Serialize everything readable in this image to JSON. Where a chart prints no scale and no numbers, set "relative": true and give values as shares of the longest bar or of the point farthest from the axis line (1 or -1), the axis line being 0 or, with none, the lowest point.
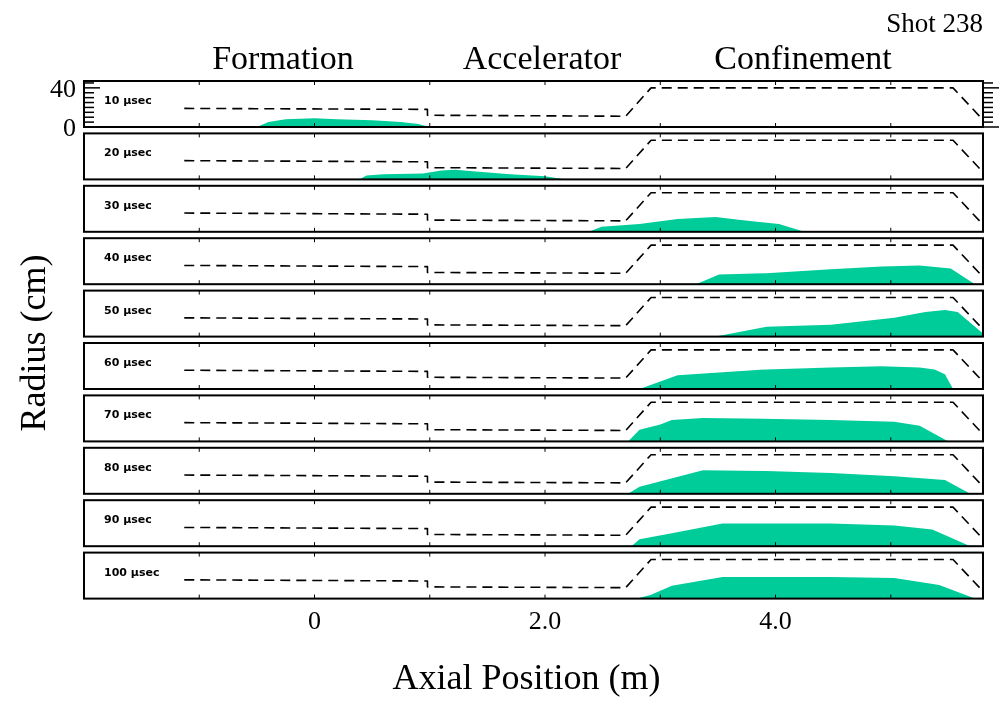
{
  "chart_data": [
    {
      "type": "area",
      "title": "Shot 238",
      "ylabel": "Radius (cm)",
      "annotations": [
        "Formation",
        "Accelerator",
        "Confinement",
        "10 µsec"
      ],
      "xlim": [
        -2,
        5.8
      ],
      "xticks": [
        {
          "value": -1,
          "label": null
        },
        {
          "value": 0,
          "label": null
        },
        {
          "value": 1,
          "label": null
        },
        {
          "value": 2,
          "label": null
        },
        {
          "value": 3,
          "label": null
        },
        {
          "value": 4,
          "label": null
        },
        {
          "value": 5,
          "label": null
        }
      ],
      "ylim": [
        0,
        47
      ],
      "yticks": [
        0,
        {
          "value": 5,
          "label": null
        },
        {
          "value": 10,
          "label": null
        },
        {
          "value": 15,
          "label": null
        },
        {
          "value": 20,
          "label": null
        },
        {
          "value": 25,
          "label": null
        },
        {
          "value": 30,
          "label": null
        },
        {
          "value": 35,
          "label": null
        },
        40,
        {
          "value": 45,
          "label": null
        }
      ],
      "tick_labels": "y",
      "series": [
        {
          "color": "#00cc99",
          "x": [
            -0.5,
            -0.4,
            -0.25,
            0,
            0.2,
            0.5,
            0.75,
            0.9,
            1.0
          ],
          "values": [
            0,
            5,
            8,
            9,
            8,
            7,
            5,
            3,
            0
          ]
        },
        {
          "type": "line",
          "color": "#000000",
          "line_style": "dashed",
          "x": [
            -1.13,
            0.98,
            0.98,
            2.7,
            2.92,
            5.54,
            5.77
          ],
          "values": [
            19,
            18,
            12,
            11,
            40,
            40,
            11
          ]
        }
      ]
    },
    {
      "type": "area",
      "relative": true,
      "annotations": [
        "20 µsec"
      ],
      "xlim": [
        -2,
        5.8
      ],
      "xticks": [
        {
          "value": -1,
          "label": null
        },
        {
          "value": 0,
          "label": null
        },
        {
          "value": 1,
          "label": null
        },
        {
          "value": 2,
          "label": null
        },
        {
          "value": 3,
          "label": null
        },
        {
          "value": 4,
          "label": null
        },
        {
          "value": 5,
          "label": null
        }
      ],
      "tick_labels": false,
      "series": [
        {
          "color": "#00cc99",
          "x": [
            0.39,
            0.45,
            0.6,
            0.94,
            1.1,
            1.22,
            1.4,
            1.7,
            2.0,
            2.18
          ],
          "values": [
            0,
            0.1,
            0.13,
            0.15,
            0.23,
            0.25,
            0.2,
            0.13,
            0.08,
            0
          ]
        },
        {
          "type": "line",
          "color": "#000000",
          "line_style": "dashed",
          "x": [
            -1.13,
            0.98,
            0.98,
            2.7,
            2.92,
            5.54,
            5.77
          ],
          "values": [
            0.48,
            0.45,
            0.3,
            0.28,
            1,
            1,
            0.28
          ]
        }
      ]
    },
    {
      "type": "area",
      "relative": true,
      "annotations": [
        "30 µsec"
      ],
      "xlim": [
        -2,
        5.8
      ],
      "xticks": [
        {
          "value": -1,
          "label": null
        },
        {
          "value": 0,
          "label": null
        },
        {
          "value": 1,
          "label": null
        },
        {
          "value": 2,
          "label": null
        },
        {
          "value": 3,
          "label": null
        },
        {
          "value": 4,
          "label": null
        },
        {
          "value": 5,
          "label": null
        }
      ],
      "tick_labels": false,
      "series": [
        {
          "color": "#00cc99",
          "x": [
            2.38,
            2.49,
            2.82,
            3.15,
            3.48,
            3.7,
            4.03,
            4.25
          ],
          "values": [
            0,
            0.13,
            0.2,
            0.33,
            0.38,
            0.3,
            0.2,
            0
          ]
        },
        {
          "type": "line",
          "color": "#000000",
          "line_style": "dashed",
          "x": [
            -1.13,
            0.98,
            0.98,
            2.7,
            2.92,
            5.54,
            5.77
          ],
          "values": [
            0.48,
            0.45,
            0.3,
            0.28,
            1,
            1,
            0.28
          ]
        }
      ]
    },
    {
      "type": "area",
      "relative": true,
      "annotations": [
        "40 µsec"
      ],
      "xlim": [
        -2,
        5.8
      ],
      "xticks": [
        {
          "value": -1,
          "label": null
        },
        {
          "value": 0,
          "label": null
        },
        {
          "value": 1,
          "label": null
        },
        {
          "value": 2,
          "label": null
        },
        {
          "value": 3,
          "label": null
        },
        {
          "value": 4,
          "label": null
        },
        {
          "value": 5,
          "label": null
        }
      ],
      "tick_labels": false,
      "series": [
        {
          "color": "#00cc99",
          "x": [
            3.31,
            3.51,
            3.92,
            4.48,
            4.92,
            5.25,
            5.52,
            5.73
          ],
          "values": [
            0,
            0.25,
            0.28,
            0.38,
            0.45,
            0.48,
            0.4,
            0
          ]
        },
        {
          "type": "line",
          "color": "#000000",
          "line_style": "dashed",
          "x": [
            -1.13,
            0.98,
            0.98,
            2.7,
            2.92,
            5.54,
            5.77
          ],
          "values": [
            0.48,
            0.45,
            0.3,
            0.28,
            1,
            1,
            0.28
          ]
        }
      ]
    },
    {
      "type": "area",
      "relative": true,
      "annotations": [
        "50 µsec"
      ],
      "xlim": [
        -2,
        5.8
      ],
      "xticks": [
        {
          "value": -1,
          "label": null
        },
        {
          "value": 0,
          "label": null
        },
        {
          "value": 1,
          "label": null
        },
        {
          "value": 2,
          "label": null
        },
        {
          "value": 3,
          "label": null
        },
        {
          "value": 4,
          "label": null
        },
        {
          "value": 5,
          "label": null
        }
      ],
      "tick_labels": false,
      "series": [
        {
          "color": "#00cc99",
          "x": [
            3.48,
            3.92,
            4.48,
            5.03,
            5.3,
            5.47,
            5.58,
            5.8
          ],
          "values": [
            0,
            0.25,
            0.3,
            0.48,
            0.63,
            0.68,
            0.63,
            0.08
          ]
        },
        {
          "type": "line",
          "color": "#000000",
          "line_style": "dashed",
          "x": [
            -1.13,
            0.98,
            0.98,
            2.7,
            2.92,
            5.54,
            5.77
          ],
          "values": [
            0.48,
            0.45,
            0.3,
            0.28,
            1,
            1,
            0.28
          ]
        }
      ]
    },
    {
      "type": "area",
      "relative": true,
      "annotations": [
        "60 µsec"
      ],
      "xlim": [
        -2,
        5.8
      ],
      "xticks": [
        {
          "value": -1,
          "label": null
        },
        {
          "value": 0,
          "label": null
        },
        {
          "value": 1,
          "label": null
        },
        {
          "value": 2,
          "label": null
        },
        {
          "value": 3,
          "label": null
        },
        {
          "value": 4,
          "label": null
        },
        {
          "value": 5,
          "label": null
        }
      ],
      "tick_labels": false,
      "series": [
        {
          "color": "#00cc99",
          "x": [
            2.82,
            3.15,
            3.92,
            4.48,
            4.92,
            5.25,
            5.38,
            5.47,
            5.54
          ],
          "values": [
            0,
            0.35,
            0.5,
            0.55,
            0.58,
            0.55,
            0.5,
            0.38,
            0
          ]
        },
        {
          "type": "line",
          "color": "#000000",
          "line_style": "dashed",
          "x": [
            -1.13,
            0.98,
            0.98,
            2.7,
            2.92,
            5.54,
            5.77
          ],
          "values": [
            0.48,
            0.45,
            0.3,
            0.28,
            1,
            1,
            0.28
          ]
        }
      ]
    },
    {
      "type": "area",
      "relative": true,
      "annotations": [
        "70 µsec"
      ],
      "xlim": [
        -2,
        5.8
      ],
      "xticks": [
        {
          "value": -1,
          "label": null
        },
        {
          "value": 0,
          "label": null
        },
        {
          "value": 1,
          "label": null
        },
        {
          "value": 2,
          "label": null
        },
        {
          "value": 3,
          "label": null
        },
        {
          "value": 4,
          "label": null
        },
        {
          "value": 5,
          "label": null
        }
      ],
      "tick_labels": false,
      "series": [
        {
          "color": "#00cc99",
          "x": [
            2.72,
            2.82,
            3.0,
            3.1,
            3.37,
            4.48,
            5.03,
            5.25,
            5.5
          ],
          "values": [
            0,
            0.3,
            0.43,
            0.55,
            0.6,
            0.55,
            0.5,
            0.4,
            0
          ]
        },
        {
          "type": "line",
          "color": "#000000",
          "line_style": "dashed",
          "x": [
            -1.13,
            0.98,
            0.98,
            2.7,
            2.92,
            5.54,
            5.77
          ],
          "values": [
            0.48,
            0.45,
            0.3,
            0.28,
            1,
            1,
            0.28
          ]
        }
      ]
    },
    {
      "type": "area",
      "relative": true,
      "annotations": [
        "80 µsec"
      ],
      "xlim": [
        -2,
        5.8
      ],
      "xticks": [
        {
          "value": -1,
          "label": null
        },
        {
          "value": 0,
          "label": null
        },
        {
          "value": 1,
          "label": null
        },
        {
          "value": 2,
          "label": null
        },
        {
          "value": 3,
          "label": null
        },
        {
          "value": 4,
          "label": null
        },
        {
          "value": 5,
          "label": null
        }
      ],
      "tick_labels": false,
      "series": [
        {
          "color": "#00cc99",
          "x": [
            2.72,
            2.82,
            3.37,
            3.92,
            4.48,
            5.03,
            5.47,
            5.69
          ],
          "values": [
            0,
            0.18,
            0.6,
            0.58,
            0.53,
            0.45,
            0.35,
            0
          ]
        },
        {
          "type": "line",
          "color": "#000000",
          "line_style": "dashed",
          "x": [
            -1.13,
            0.98,
            0.98,
            2.7,
            2.92,
            5.54,
            5.77
          ],
          "values": [
            0.48,
            0.45,
            0.3,
            0.28,
            1,
            1,
            0.28
          ]
        }
      ]
    },
    {
      "type": "area",
      "relative": true,
      "annotations": [
        "90 µsec"
      ],
      "xlim": [
        -2,
        5.8
      ],
      "xticks": [
        {
          "value": -1,
          "label": null
        },
        {
          "value": 0,
          "label": null
        },
        {
          "value": 1,
          "label": null
        },
        {
          "value": 2,
          "label": null
        },
        {
          "value": 3,
          "label": null
        },
        {
          "value": 4,
          "label": null
        },
        {
          "value": 5,
          "label": null
        }
      ],
      "tick_labels": false,
      "series": [
        {
          "color": "#00cc99",
          "x": [
            2.75,
            2.82,
            3.1,
            3.54,
            4.48,
            5.03,
            5.36,
            5.69
          ],
          "values": [
            0,
            0.18,
            0.33,
            0.58,
            0.58,
            0.53,
            0.43,
            0
          ]
        },
        {
          "type": "line",
          "color": "#000000",
          "line_style": "dashed",
          "x": [
            -1.13,
            0.98,
            0.98,
            2.7,
            2.92,
            5.54,
            5.77
          ],
          "values": [
            0.48,
            0.45,
            0.3,
            0.28,
            1,
            1,
            0.28
          ]
        }
      ]
    },
    {
      "type": "area",
      "relative": true,
      "xlabel": "Axial Position (m)",
      "annotations": [
        "100 µsec"
      ],
      "xlim": [
        -2,
        5.8
      ],
      "xticks": [
        {
          "value": -1,
          "label": null
        },
        {
          "value": 0,
          "label": "0"
        },
        {
          "value": 1,
          "label": null
        },
        {
          "value": 2,
          "label": "2.0"
        },
        {
          "value": 3,
          "label": null
        },
        {
          "value": 4,
          "label": "4.0"
        },
        {
          "value": 5,
          "label": null
        }
      ],
      "tick_labels": "x",
      "series": [
        {
          "color": "#00cc99",
          "x": [
            2.8,
            2.92,
            3.1,
            3.54,
            4.48,
            5.03,
            5.42,
            5.73
          ],
          "values": [
            0,
            0.1,
            0.33,
            0.55,
            0.55,
            0.53,
            0.35,
            0
          ]
        },
        {
          "type": "line",
          "color": "#000000",
          "line_style": "dashed",
          "x": [
            -1.13,
            0.98,
            0.98,
            2.7,
            2.92,
            5.54,
            5.77
          ],
          "values": [
            0.48,
            0.45,
            0.3,
            0.28,
            1,
            1,
            0.28
          ]
        }
      ]
    }
  ]
}
